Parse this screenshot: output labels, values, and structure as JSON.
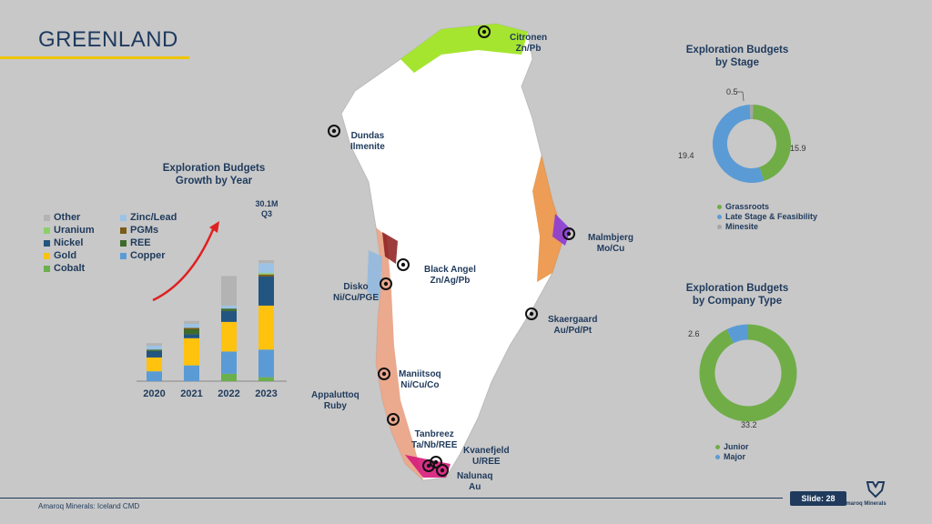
{
  "header": {
    "title": "GREENLAND"
  },
  "growth_chart": {
    "title_line1": "Exploration Budgets",
    "title_line2": "Growth by Year",
    "annotation_value": "30.1M",
    "annotation_period": "Q3",
    "legend_left": [
      {
        "label": "Other",
        "color": "#b3b3b3"
      },
      {
        "label": "Uranium",
        "color": "#8ccf6a"
      },
      {
        "label": "Nickel",
        "color": "#22557f"
      },
      {
        "label": "Gold",
        "color": "#ffc20e"
      },
      {
        "label": "Cobalt",
        "color": "#6ab04c"
      }
    ],
    "legend_right": [
      {
        "label": "Zinc/Lead",
        "color": "#9cc3e5"
      },
      {
        "label": "PGMs",
        "color": "#7a5c18"
      },
      {
        "label": "REE",
        "color": "#3e6b2b"
      },
      {
        "label": "Copper",
        "color": "#5b9bd5"
      }
    ]
  },
  "chart_data": {
    "type": "bar",
    "title": "Exploration Budgets Growth by Year",
    "stacked": true,
    "categories": [
      "2020",
      "2021",
      "2022",
      "2023"
    ],
    "series": [
      {
        "name": "Cobalt",
        "color": "#6ab04c",
        "values": [
          0,
          0,
          1.5,
          0.8
        ]
      },
      {
        "name": "Copper",
        "color": "#5b9bd5",
        "values": [
          2.0,
          3.2,
          4.5,
          5.6
        ]
      },
      {
        "name": "Gold",
        "color": "#ffc20e",
        "values": [
          2.8,
          5.5,
          6.0,
          8.9
        ]
      },
      {
        "name": "Nickel",
        "color": "#22557f",
        "values": [
          1.3,
          0.8,
          2.2,
          5.9
        ]
      },
      {
        "name": "REE",
        "color": "#3e6b2b",
        "values": [
          0.3,
          1.0,
          0.5,
          0
        ]
      },
      {
        "name": "PGMs",
        "color": "#7a5c18",
        "values": [
          0,
          0.3,
          0,
          0.4
        ]
      },
      {
        "name": "Uranium",
        "color": "#8ccf6a",
        "values": [
          0,
          0,
          0,
          0.3
        ]
      },
      {
        "name": "Zinc/Lead",
        "color": "#9cc3e5",
        "values": [
          0.8,
          0.8,
          0.6,
          2.0
        ]
      },
      {
        "name": "Other",
        "color": "#b3b3b3",
        "values": [
          0.5,
          0.6,
          6.0,
          0.6
        ]
      }
    ],
    "xlabel": "",
    "ylabel": "",
    "ylim": [
      0,
      35
    ],
    "grid": false
  },
  "stage_donut": {
    "title_line1": "Exploration Budgets",
    "title_line2": "by Stage",
    "segments": [
      {
        "label": "Grassroots",
        "value": 15.9,
        "color": "#70ad47",
        "display": "15.9"
      },
      {
        "label": "Late Stage & Feasibility",
        "value": 19.4,
        "color": "#5b9bd5",
        "display": "19.4"
      },
      {
        "label": "Minesite",
        "value": 0.5,
        "color": "#a5a5a5",
        "display": "0.5"
      }
    ],
    "legend_line1": "Grassroots",
    "legend_line2": "Late Stage & Feasibility",
    "legend_line3": "Minesite"
  },
  "company_donut": {
    "title_line1": "Exploration Budgets",
    "title_line2": "by Company Type",
    "segments": [
      {
        "label": "Junior",
        "value": 33.2,
        "color": "#70ad47",
        "display": "33.2"
      },
      {
        "label": "Major",
        "value": 2.6,
        "color": "#5b9bd5",
        "display": "2.6"
      }
    ]
  },
  "map": {
    "projects": [
      {
        "name": "Citronen",
        "commodity": "Zn/Pb"
      },
      {
        "name": "Dundas",
        "commodity": "Ilmenite"
      },
      {
        "name": "Black Angel",
        "commodity": "Zn/Ag/Pb"
      },
      {
        "name": "Disko",
        "commodity": "Ni/Cu/PGE"
      },
      {
        "name": "Malmbjerg",
        "commodity": "Mo/Cu"
      },
      {
        "name": "Skaergaard",
        "commodity": "Au/Pd/Pt"
      },
      {
        "name": "Maniitsoq",
        "commodity": "Ni/Cu/Co"
      },
      {
        "name": "Appaluttoq",
        "commodity": "Ruby"
      },
      {
        "name": "Tanbreez",
        "commodity": "Ta/Nb/REE"
      },
      {
        "name": "Kvanefjeld",
        "commodity": "U/REE"
      },
      {
        "name": "Nalunaq",
        "commodity": "Au"
      }
    ]
  },
  "footer": {
    "text": "Amaroq Minerals: Iceland CMD",
    "slide": "Slide: 28",
    "logo": "Amaroq Minerals"
  }
}
